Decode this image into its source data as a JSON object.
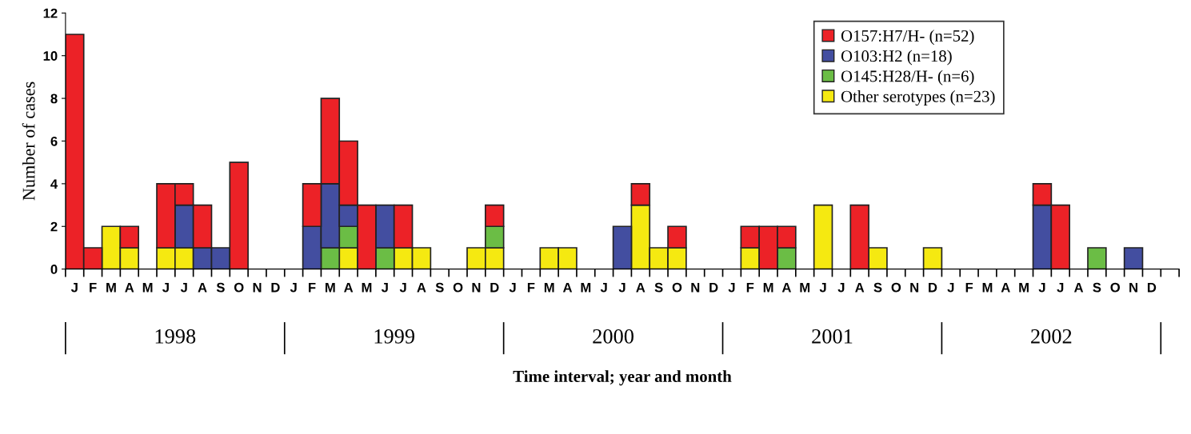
{
  "chart_data": {
    "type": "bar",
    "stacked": true,
    "xlabel": "Time interval; year and month",
    "ylabel": "Number of cases",
    "categories": [
      "J",
      "F",
      "M",
      "A",
      "M",
      "J",
      "J",
      "A",
      "S",
      "O",
      "N",
      "D",
      "J",
      "F",
      "M",
      "A",
      "M",
      "J",
      "J",
      "A",
      "S",
      "O",
      "N",
      "D",
      "J",
      "F",
      "M",
      "A",
      "M",
      "J",
      "J",
      "A",
      "S",
      "O",
      "N",
      "D",
      "J",
      "F",
      "M",
      "A",
      "M",
      "J",
      "J",
      "A",
      "S",
      "O",
      "N",
      "D",
      "J",
      "F",
      "M",
      "A",
      "M",
      "J",
      "J",
      "A",
      "S",
      "O",
      "N",
      "D"
    ],
    "annotations": [
      "1998",
      "1999",
      "2000",
      "2001",
      "2002"
    ],
    "series": [
      {
        "name": "Other serotypes (n=23)",
        "color": "#f5e911",
        "values": [
          0,
          0,
          2,
          1,
          0,
          1,
          1,
          0,
          0,
          0,
          0,
          0,
          0,
          0,
          0,
          1,
          0,
          0,
          1,
          1,
          0,
          0,
          1,
          1,
          0,
          0,
          1,
          1,
          0,
          0,
          0,
          3,
          1,
          1,
          0,
          0,
          0,
          1,
          0,
          0,
          0,
          3,
          0,
          0,
          1,
          0,
          0,
          1,
          0,
          0,
          0,
          0,
          0,
          0,
          0,
          0,
          0,
          0,
          0,
          0
        ]
      },
      {
        "name": "O145:H28/H- (n=6)",
        "color": "#6bbd45",
        "values": [
          0,
          0,
          0,
          0,
          0,
          0,
          0,
          0,
          0,
          0,
          0,
          0,
          0,
          0,
          1,
          1,
          0,
          1,
          0,
          0,
          0,
          0,
          0,
          1,
          0,
          0,
          0,
          0,
          0,
          0,
          0,
          0,
          0,
          0,
          0,
          0,
          0,
          0,
          0,
          1,
          0,
          0,
          0,
          0,
          0,
          0,
          0,
          0,
          0,
          0,
          0,
          0,
          0,
          0,
          0,
          0,
          1,
          0,
          0,
          0
        ]
      },
      {
        "name": "O103:H2 (n=18)",
        "color": "#434ea0",
        "values": [
          0,
          0,
          0,
          0,
          0,
          0,
          2,
          1,
          1,
          0,
          0,
          0,
          0,
          2,
          3,
          1,
          0,
          2,
          0,
          0,
          0,
          0,
          0,
          0,
          0,
          0,
          0,
          0,
          0,
          0,
          2,
          0,
          0,
          0,
          0,
          0,
          0,
          0,
          0,
          0,
          0,
          0,
          0,
          0,
          0,
          0,
          0,
          0,
          0,
          0,
          0,
          0,
          0,
          3,
          0,
          0,
          0,
          0,
          1,
          0
        ]
      },
      {
        "name": "O157:H7/H- (n=52)",
        "color": "#ec2227",
        "values": [
          11,
          1,
          0,
          1,
          0,
          3,
          1,
          2,
          0,
          5,
          0,
          0,
          0,
          2,
          4,
          3,
          3,
          0,
          2,
          0,
          0,
          0,
          0,
          1,
          0,
          0,
          0,
          0,
          0,
          0,
          0,
          1,
          0,
          1,
          0,
          0,
          0,
          1,
          2,
          1,
          0,
          0,
          0,
          3,
          0,
          0,
          0,
          0,
          0,
          0,
          0,
          0,
          0,
          1,
          3,
          0,
          0,
          0,
          0,
          0
        ]
      }
    ],
    "ylim": [
      0,
      12
    ],
    "yticks": [
      0,
      2,
      4,
      6,
      8,
      10,
      12
    ],
    "grid": false,
    "legend": "top right"
  }
}
